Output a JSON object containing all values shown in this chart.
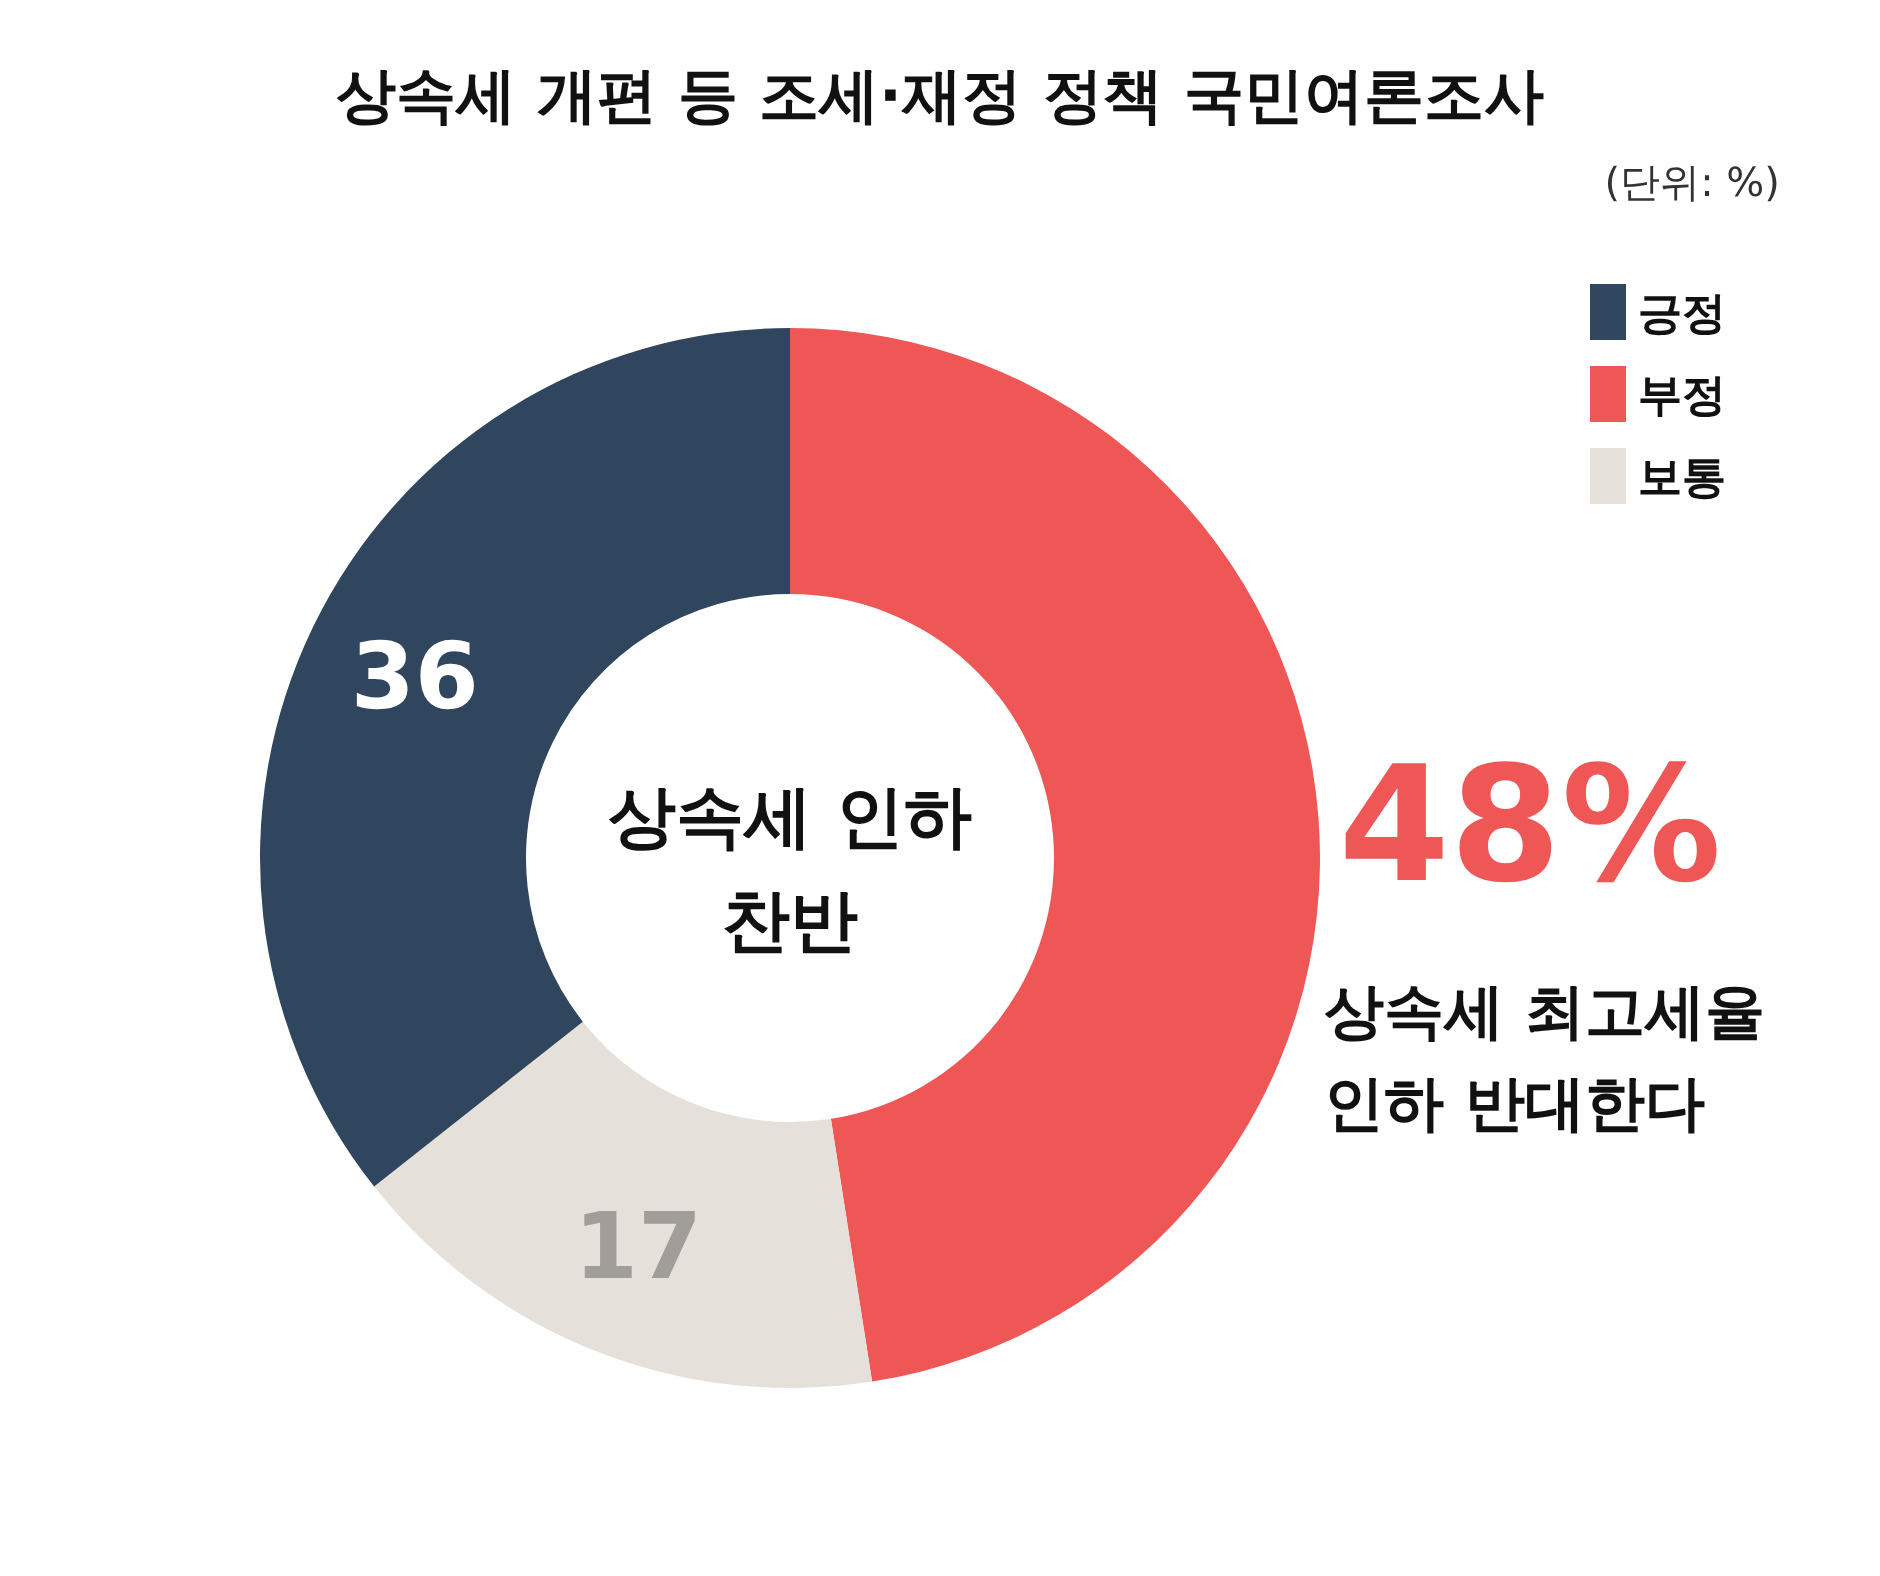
{
  "chart_data": {
    "type": "donut",
    "title": "상속세 개편 등 조세·재정 정책 국민여론조사",
    "categories": [
      "긍정",
      "부정",
      "보통"
    ],
    "values": [
      36,
      48,
      17
    ],
    "colors": [
      "#30465e",
      "#ef5656",
      "#e6e0da"
    ],
    "value_labels": [
      "36",
      "48%",
      "17"
    ],
    "legend": "top right",
    "annotations": [
      "(단위: %)",
      "상속세 인하\n찬반",
      "상속세 최고세율\n인하 반대한다"
    ]
  }
}
